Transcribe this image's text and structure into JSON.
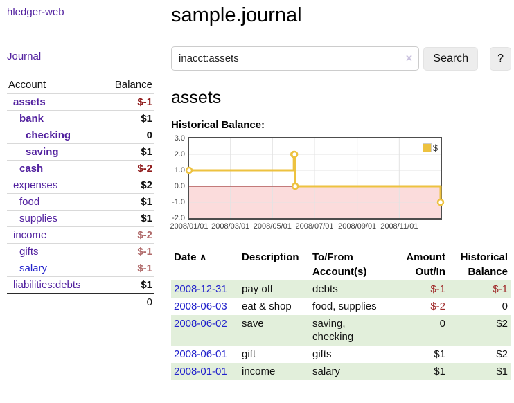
{
  "app": {
    "title": "hledger-web"
  },
  "sidebar": {
    "journal_link": "Journal",
    "accounts": {
      "header_account": "Account",
      "header_balance": "Balance",
      "rows": [
        {
          "name": "assets",
          "balance": "$-1"
        },
        {
          "name": "bank",
          "balance": "$1"
        },
        {
          "name": "checking",
          "balance": "0"
        },
        {
          "name": "saving",
          "balance": "$1"
        },
        {
          "name": "cash",
          "balance": "$-2"
        },
        {
          "name": "expenses",
          "balance": "$2"
        },
        {
          "name": "food",
          "balance": "$1"
        },
        {
          "name": "supplies",
          "balance": "$1"
        },
        {
          "name": "income",
          "balance": "$-2"
        },
        {
          "name": "gifts",
          "balance": "$-1"
        },
        {
          "name": "salary",
          "balance": "$-1"
        },
        {
          "name": "liabilities:debts",
          "balance": "$1"
        }
      ],
      "total": "0"
    }
  },
  "main": {
    "title": "sample.journal",
    "search": {
      "value": "inacct:assets",
      "clear_icon": "×",
      "search_button": "Search",
      "help_button": "?"
    },
    "account_heading": "assets",
    "chart_heading": "Historical Balance:"
  },
  "chart_data": {
    "type": "line",
    "step": true,
    "title": "Historical Balance:",
    "series": [
      {
        "name": "$",
        "color": "#edc240",
        "points": [
          [
            "2008-01-01",
            1
          ],
          [
            "2008-06-01",
            2
          ],
          [
            "2008-06-02",
            2
          ],
          [
            "2008-06-03",
            0
          ],
          [
            "2008-12-31",
            -1
          ]
        ]
      }
    ],
    "xlim": [
      "2008-01-01",
      "2008-12-31"
    ],
    "ylim": [
      -2,
      3
    ],
    "y_ticks": [
      3.0,
      2.0,
      1.0,
      0.0,
      -1.0,
      -2.0
    ],
    "x_ticks": [
      "2008/01/01",
      "2008/03/01",
      "2008/05/01",
      "2008/07/01",
      "2008/09/01",
      "2008/11/01"
    ],
    "legend_position": "top-right",
    "grid": true,
    "grid_color": "#e3e3e3",
    "zero_line_color": "#8b1a1a",
    "negative_region_color": "#fbdcdc",
    "marker": {
      "shape": "circle",
      "fill": "#ffffff"
    }
  },
  "register": {
    "headers": {
      "date_label": "Date",
      "date_sort_icon": "∧",
      "description": "Description",
      "accounts_line1": "To/From",
      "accounts_line2": "Account(s)",
      "amount_line1": "Amount",
      "amount_line2": "Out/In",
      "balance_line1": "Historical",
      "balance_line2": "Balance"
    },
    "rows": [
      {
        "date": "2008-12-31",
        "description": "pay off",
        "accounts": "debts",
        "amount": "$-1",
        "balance": "$-1"
      },
      {
        "date": "2008-06-03",
        "description": "eat & shop",
        "accounts": "food, supplies",
        "amount": "$-2",
        "balance": "0"
      },
      {
        "date": "2008-06-02",
        "description": "save",
        "accounts": "saving, checking",
        "amount": "0",
        "balance": "$2"
      },
      {
        "date": "2008-06-01",
        "description": "gift",
        "accounts": "gifts",
        "amount": "$1",
        "balance": "$2"
      },
      {
        "date": "2008-01-01",
        "description": "income",
        "accounts": "salary",
        "amount": "$1",
        "balance": "$1"
      }
    ]
  }
}
